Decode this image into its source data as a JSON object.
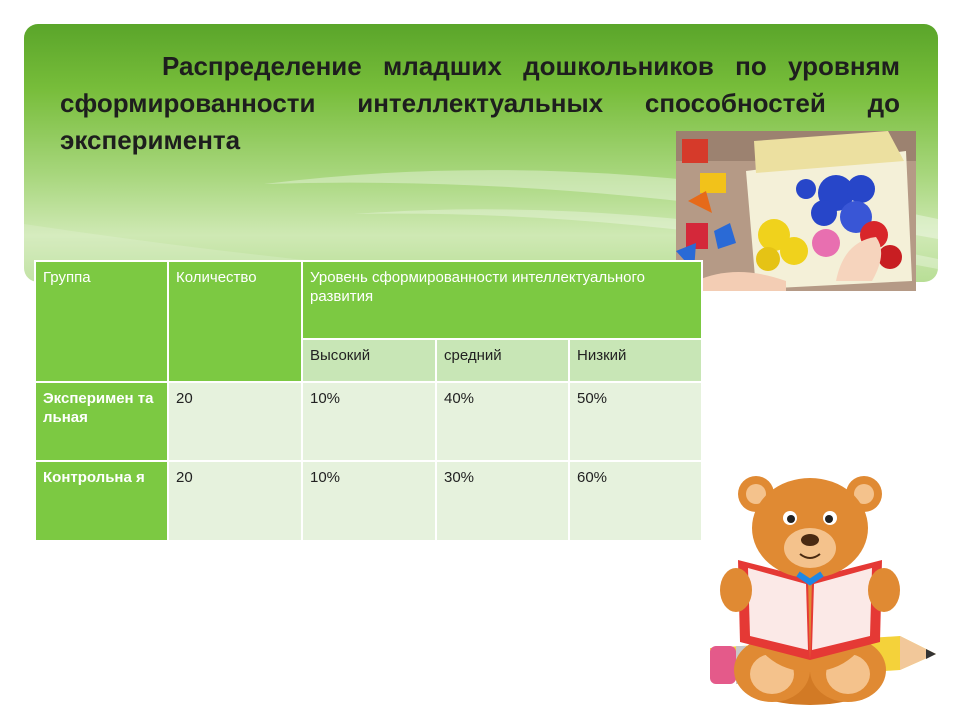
{
  "slide": {
    "title": "Распределение младших дошкольников по уровням сформированности интеллектуальных способностей до эксперимента",
    "colors": {
      "accent_green": "#7cc942",
      "subheader_green": "#c8e6b6",
      "cell_green": "#e6f2dd",
      "banner_dark": "#5aa52a"
    }
  },
  "table": {
    "headers": {
      "group": "Группа",
      "count": "Количество",
      "level": "Уровень сформированности интеллектуального развития"
    },
    "subheaders": {
      "high": "Высокий",
      "mid": "средний",
      "low": "Низкий"
    },
    "rows": [
      {
        "group": "Эксперимен тальная",
        "count": "20",
        "high": "10%",
        "mid": "40%",
        "low": "50%"
      },
      {
        "group": "Контрольна я",
        "count": "20",
        "high": "10%",
        "mid": "30%",
        "low": "60%"
      }
    ]
  },
  "images": {
    "photo": "child-playing-with-blocks-photo",
    "bear": "bear-reading-book-on-pencil-clipart"
  }
}
